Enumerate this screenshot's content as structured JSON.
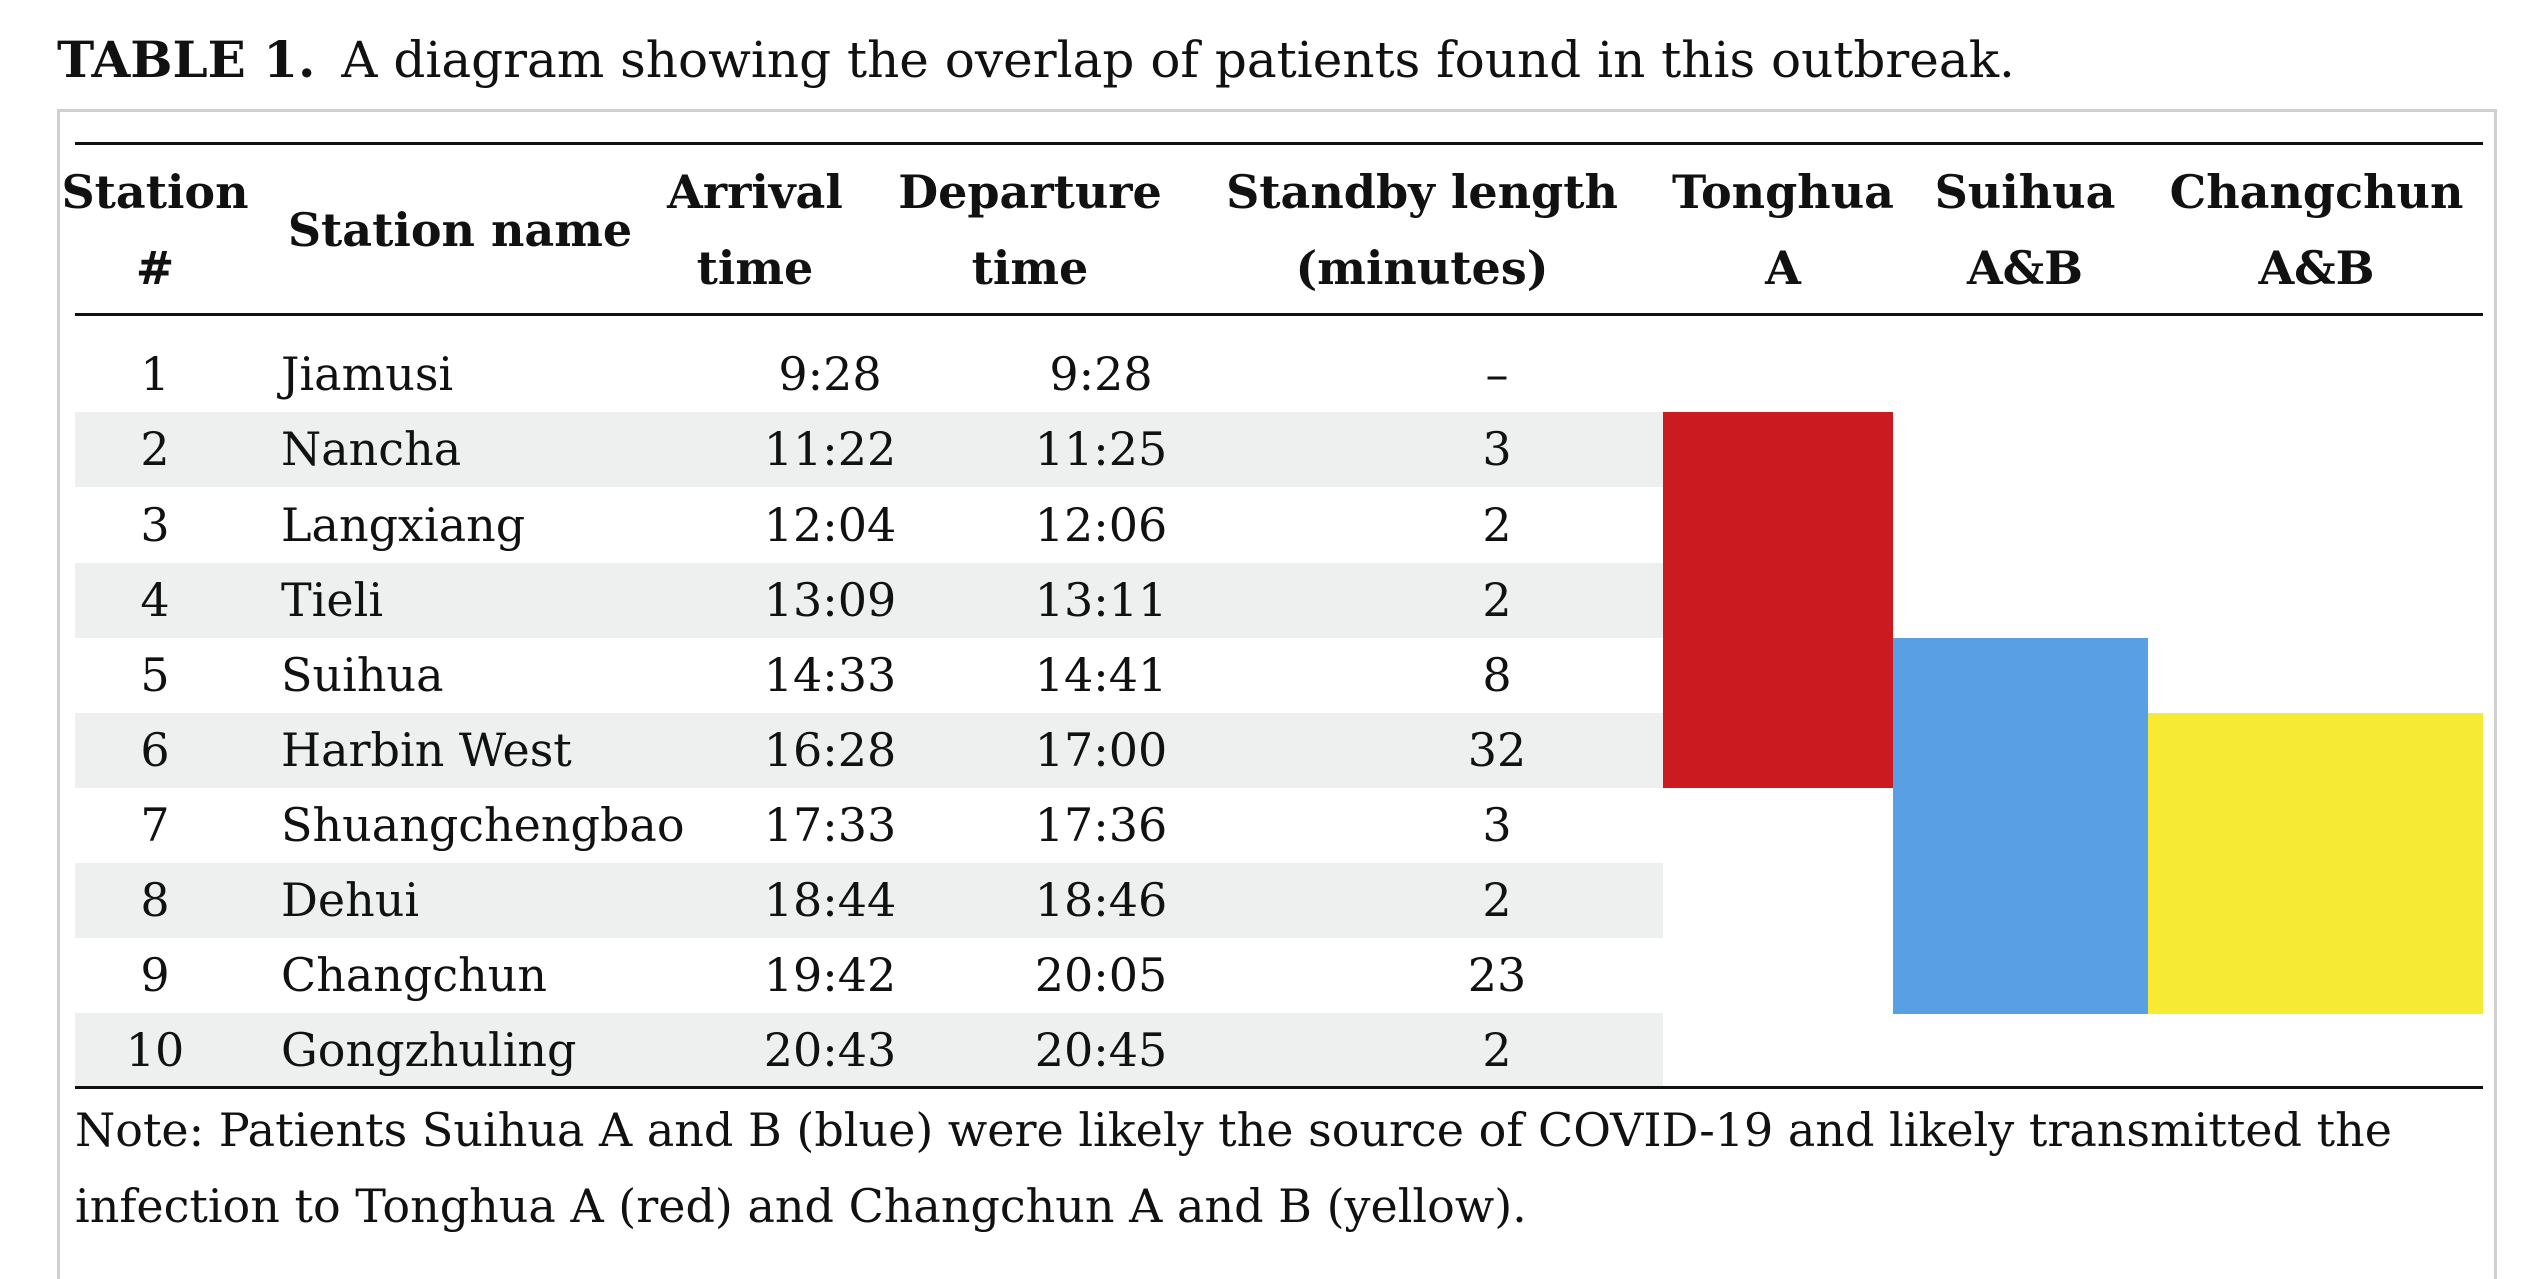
{
  "caption": {
    "label": "TABLE 1.",
    "text": "A diagram showing the overlap of patients found in this outbreak."
  },
  "headers": {
    "station_num": [
      "Station",
      "#"
    ],
    "station_name": [
      "Station name"
    ],
    "arrival": [
      "Arrival",
      "time"
    ],
    "departure": [
      "Departure",
      "time"
    ],
    "standby": [
      "Standby length",
      "(minutes)"
    ],
    "tonghua": [
      "Tonghua",
      "A"
    ],
    "suihua": [
      "Suihua",
      "A&B"
    ],
    "changchun": [
      "Changchun",
      "A&B"
    ]
  },
  "rows": [
    {
      "num": "1",
      "name": "Jiamusi",
      "arrival": "9:28",
      "departure": "9:28",
      "standby": "–"
    },
    {
      "num": "2",
      "name": "Nancha",
      "arrival": "11:22",
      "departure": "11:25",
      "standby": "3"
    },
    {
      "num": "3",
      "name": "Langxiang",
      "arrival": "12:04",
      "departure": "12:06",
      "standby": "2"
    },
    {
      "num": "4",
      "name": "Tieli",
      "arrival": "13:09",
      "departure": "13:11",
      "standby": "2"
    },
    {
      "num": "5",
      "name": "Suihua",
      "arrival": "14:33",
      "departure": "14:41",
      "standby": "8"
    },
    {
      "num": "6",
      "name": "Harbin West",
      "arrival": "16:28",
      "departure": "17:00",
      "standby": "32"
    },
    {
      "num": "7",
      "name": "Shuangchengbao",
      "arrival": "17:33",
      "departure": "17:36",
      "standby": "3"
    },
    {
      "num": "8",
      "name": "Dehui",
      "arrival": "18:44",
      "departure": "18:46",
      "standby": "2"
    },
    {
      "num": "9",
      "name": "Changchun",
      "arrival": "19:42",
      "departure": "20:05",
      "standby": "23"
    },
    {
      "num": "10",
      "name": "Gongzhuling",
      "arrival": "20:43",
      "departure": "20:45",
      "standby": "2"
    }
  ],
  "patient_spans": [
    {
      "column": "tonghua",
      "first_station": 2,
      "last_station": 6,
      "color": "#cc1b20"
    },
    {
      "column": "suihua",
      "first_station": 5,
      "last_station": 9,
      "color": "#58a0e3"
    },
    {
      "column": "changchun",
      "first_station": 6,
      "last_station": 9,
      "color": "#f7ea35"
    }
  ],
  "note": "Note: Patients Suihua A and B (blue) were likely the source of COVID-19 and likely transmitted the infection to Tonghua A (red) and Changchun A and B (yellow)."
}
